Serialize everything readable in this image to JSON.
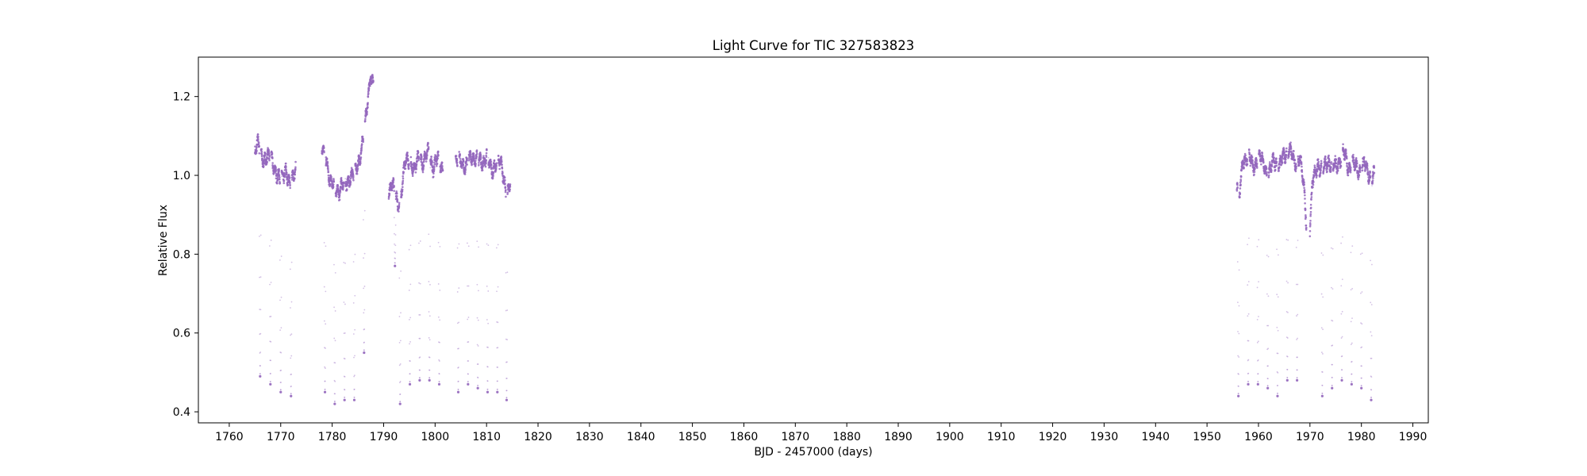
{
  "chart_data": {
    "type": "scatter",
    "title": "Light Curve for TIC 327583823",
    "xlabel": "BJD - 2457000 (days)",
    "ylabel": "Relative Flux",
    "xlim": [
      1754,
      1993
    ],
    "ylim": [
      0.372,
      1.3
    ],
    "xticks": [
      1760,
      1770,
      1780,
      1790,
      1800,
      1810,
      1820,
      1830,
      1840,
      1850,
      1860,
      1870,
      1880,
      1890,
      1900,
      1910,
      1920,
      1930,
      1940,
      1950,
      1960,
      1970,
      1980,
      1990
    ],
    "yticks": [
      0.4,
      0.6,
      0.8,
      1.0,
      1.2
    ],
    "ytick_labels": [
      "0.4",
      "0.6",
      "0.8",
      "1.0",
      "1.2"
    ],
    "grid": false,
    "marker_color": "#9467bd",
    "series": [
      {
        "segments": [
          {
            "start": 1765.0,
            "end": 1772.9,
            "base": 1.0,
            "knots": [
              [
                1765.0,
                1.07
              ],
              [
                1765.6,
                1.08
              ],
              [
                1766.4,
                1.04
              ],
              [
                1767.3,
                1.05
              ],
              [
                1768.2,
                1.04
              ],
              [
                1769.1,
                1.01
              ],
              [
                1770.0,
                0.98
              ],
              [
                1771.0,
                1.02
              ],
              [
                1771.9,
                0.96
              ],
              [
                1772.9,
                1.03
              ]
            ],
            "eclipses": [
              [
                1766.0,
                0.49
              ],
              [
                1768.0,
                0.47
              ],
              [
                1770.0,
                0.45
              ],
              [
                1772.0,
                0.44
              ]
            ]
          },
          {
            "start": 1778.0,
            "end": 1788.0,
            "base": 1.0,
            "knots": [
              [
                1778.0,
                1.06
              ],
              [
                1778.8,
                1.05
              ],
              [
                1779.6,
                0.98
              ],
              [
                1780.5,
                0.97
              ],
              [
                1781.4,
                0.96
              ],
              [
                1782.3,
                0.98
              ],
              [
                1783.2,
                0.99
              ],
              [
                1784.1,
                1.0
              ],
              [
                1785.0,
                1.03
              ],
              [
                1785.8,
                1.07
              ],
              [
                1786.5,
                1.14
              ],
              [
                1787.1,
                1.22
              ],
              [
                1787.5,
                1.26
              ],
              [
                1787.8,
                1.23
              ]
            ],
            "eclipses": [
              [
                1778.6,
                0.45
              ],
              [
                1780.5,
                0.42
              ],
              [
                1782.4,
                0.43
              ],
              [
                1784.3,
                0.43
              ],
              [
                1786.2,
                0.55
              ]
            ]
          },
          {
            "start": 1791.0,
            "end": 1801.5,
            "base": 1.0,
            "knots": [
              [
                1791.0,
                0.95
              ],
              [
                1791.5,
                0.99
              ],
              [
                1792.2,
                0.95
              ],
              [
                1792.8,
                0.92
              ],
              [
                1793.4,
                0.96
              ],
              [
                1794.2,
                1.03
              ],
              [
                1795.1,
                1.04
              ],
              [
                1796.0,
                1.01
              ],
              [
                1796.9,
                1.05
              ],
              [
                1797.8,
                1.03
              ],
              [
                1798.7,
                1.06
              ],
              [
                1799.6,
                1.02
              ],
              [
                1800.5,
                1.04
              ],
              [
                1801.5,
                1.02
              ]
            ],
            "eclipses": [
              [
                1792.2,
                0.77
              ],
              [
                1793.2,
                0.42
              ],
              [
                1795.1,
                0.47
              ],
              [
                1797.0,
                0.48
              ],
              [
                1798.9,
                0.48
              ],
              [
                1800.8,
                0.47
              ]
            ]
          },
          {
            "start": 1804.0,
            "end": 1814.6,
            "base": 1.0,
            "knots": [
              [
                1804.0,
                1.03
              ],
              [
                1805.0,
                1.04
              ],
              [
                1806.0,
                1.02
              ],
              [
                1807.0,
                1.05
              ],
              [
                1808.0,
                1.04
              ],
              [
                1809.0,
                1.03
              ],
              [
                1810.0,
                1.05
              ],
              [
                1811.0,
                1.01
              ],
              [
                1812.0,
                1.04
              ],
              [
                1813.0,
                1.02
              ],
              [
                1814.0,
                0.95
              ],
              [
                1814.6,
                0.97
              ]
            ],
            "eclipses": [
              [
                1804.5,
                0.45
              ],
              [
                1806.4,
                0.47
              ],
              [
                1808.3,
                0.46
              ],
              [
                1810.2,
                0.45
              ],
              [
                1812.1,
                0.45
              ],
              [
                1813.9,
                0.43
              ]
            ]
          },
          {
            "start": 1955.8,
            "end": 1969.3,
            "base": 1.0,
            "knots": [
              [
                1955.8,
                0.98
              ],
              [
                1956.3,
                0.95
              ],
              [
                1957.0,
                1.04
              ],
              [
                1958.0,
                1.05
              ],
              [
                1959.0,
                1.02
              ],
              [
                1960.0,
                1.05
              ],
              [
                1961.0,
                1.03
              ],
              [
                1962.0,
                1.0
              ],
              [
                1963.0,
                1.04
              ],
              [
                1964.0,
                1.02
              ],
              [
                1965.0,
                1.05
              ],
              [
                1966.0,
                1.07
              ],
              [
                1967.0,
                1.03
              ],
              [
                1968.0,
                1.05
              ],
              [
                1968.8,
                0.97
              ],
              [
                1969.3,
                0.88
              ]
            ],
            "eclipses": [
              [
                1956.1,
                0.44
              ],
              [
                1958.0,
                0.47
              ],
              [
                1959.9,
                0.47
              ],
              [
                1961.8,
                0.46
              ],
              [
                1963.7,
                0.44
              ],
              [
                1965.6,
                0.48
              ],
              [
                1967.5,
                0.48
              ]
            ]
          },
          {
            "start": 1970.0,
            "end": 1982.5,
            "base": 1.0,
            "knots": [
              [
                1970.0,
                0.86
              ],
              [
                1970.5,
                0.98
              ],
              [
                1971.5,
                1.03
              ],
              [
                1972.5,
                1.01
              ],
              [
                1973.5,
                1.04
              ],
              [
                1974.5,
                1.02
              ],
              [
                1975.5,
                1.03
              ],
              [
                1976.5,
                1.06
              ],
              [
                1977.5,
                1.02
              ],
              [
                1978.5,
                1.03
              ],
              [
                1979.5,
                1.01
              ],
              [
                1980.5,
                1.03
              ],
              [
                1981.5,
                1.0
              ],
              [
                1982.5,
                1.0
              ]
            ],
            "eclipses": [
              [
                1972.4,
                0.44
              ],
              [
                1974.3,
                0.46
              ],
              [
                1976.2,
                0.48
              ],
              [
                1978.1,
                0.47
              ],
              [
                1980.0,
                0.46
              ],
              [
                1981.9,
                0.43
              ]
            ]
          }
        ]
      }
    ]
  }
}
